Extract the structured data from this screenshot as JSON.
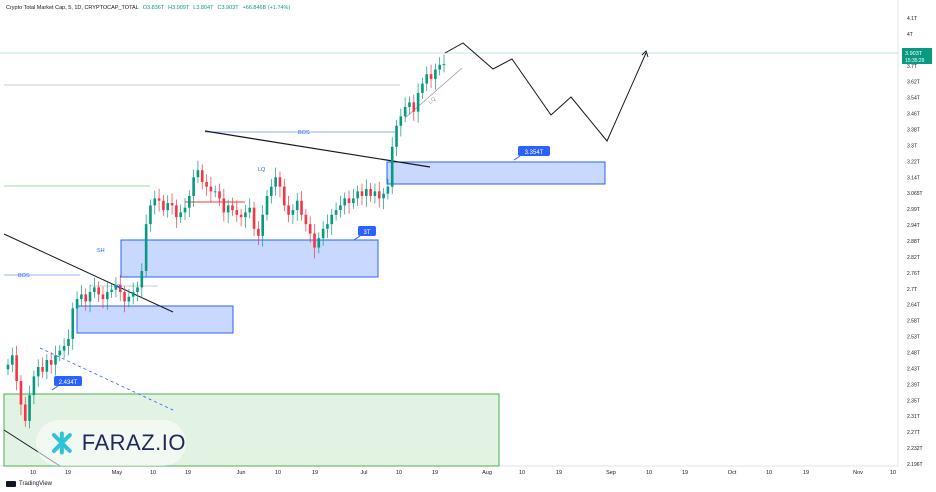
{
  "header": {
    "symbol": "Crypto Total Market Cap, 5, 1D, CRYPTOCAP_TOTAL",
    "open": "O3.836T",
    "high": "H3.909T",
    "low": "L3.804T",
    "close": "C3.903T",
    "change": "+66.846B (+1.74%)"
  },
  "price_tag": {
    "value": "3.903T",
    "timer": "15:35:29"
  },
  "brand": {
    "watermark": "FARAZ.IO",
    "tradingview": "TradingView"
  },
  "colors": {
    "up": "#089981",
    "down": "#f23645",
    "zone_blue": "#2962ff",
    "zone_green": "#4caf50",
    "trend": "#000000"
  },
  "chart_data": {
    "type": "candlestick",
    "y_axis_ticks": [
      "4.1T",
      "4T",
      "3.903T",
      "3.8T",
      "3.7T",
      "3.62T",
      "3.54T",
      "3.46T",
      "3.38T",
      "3.3T",
      "3.22T",
      "3.14T",
      "3.065T",
      "2.99T",
      "2.94T",
      "2.88T",
      "2.82T",
      "2.76T",
      "2.7T",
      "2.64T",
      "2.58T",
      "2.53T",
      "2.48T",
      "2.43T",
      "2.39T",
      "2.35T",
      "2.31T",
      "2.27T",
      "2.232T",
      "2.196T"
    ],
    "x_axis_ticks": [
      "10",
      "19",
      "May",
      "10",
      "19",
      "Jun",
      "10",
      "19",
      "Jul",
      "10",
      "19",
      "Aug",
      "10",
      "19",
      "Sep",
      "10",
      "19",
      "Oct",
      "10",
      "19",
      "Nov",
      "10"
    ],
    "annotations": {
      "bos_left": "BOS",
      "sh": "SH",
      "lq_left": "LQ",
      "bos_top": "BOS",
      "lq_mid": "LQ",
      "lq_right": "LQ",
      "zone_2434": "2.434T",
      "zone_3t": "3T",
      "zone_3354": "3.354T"
    }
  }
}
